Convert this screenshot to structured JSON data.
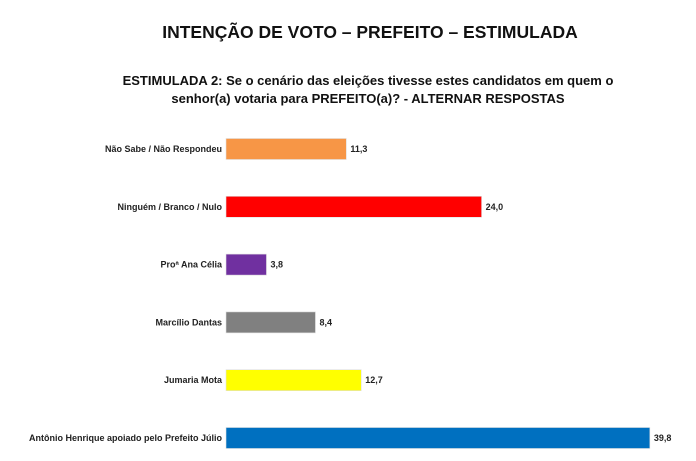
{
  "chart_data": {
    "type": "bar",
    "orientation": "horizontal",
    "title": "INTENÇÃO DE VOTO – PREFEITO – ESTIMULADA",
    "subtitle_lines": [
      "ESTIMULADA 2: Se o cenário das eleições tivesse estes candidatos em quem o",
      "senhor(a) votaria para PREFEITO(a)? - ALTERNAR RESPOSTAS"
    ],
    "categories": [
      "Não Sabe / Não Respondeu",
      "Ninguém / Branco / Nulo",
      "Proª Ana Célia",
      "Marcílio Dantas",
      "Jumaria Mota",
      "Antônio Henrique apoiado pelo Prefeito Júlio"
    ],
    "values": [
      11.3,
      24.0,
      3.8,
      8.4,
      12.7,
      39.8
    ],
    "value_labels": [
      "11,3",
      "24,0",
      "3,8",
      "8,4",
      "12,7",
      "39,8"
    ],
    "colors": [
      "#F79646",
      "#FF0000",
      "#7030A0",
      "#808080",
      "#FFFF00",
      "#0070C0"
    ],
    "xlabel": "",
    "ylabel": "",
    "xlim": [
      0,
      40
    ],
    "grid": false
  }
}
